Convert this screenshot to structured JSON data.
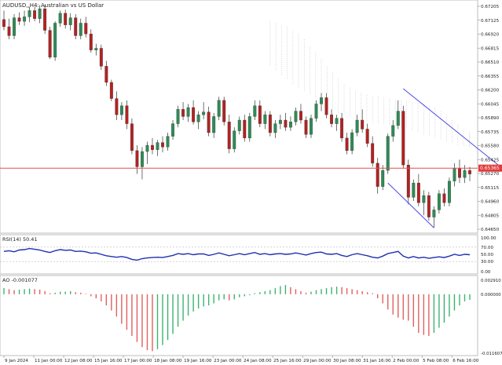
{
  "window": {
    "symbol_title": "AUDUSD,,H4:  Australian vs US Dollar"
  },
  "colors": {
    "bull": "#2e8b57",
    "bear": "#b22222",
    "wick": "#333333",
    "cloud": "#c8c8c8",
    "hline": "#e05050",
    "channel": "#4a4ae0",
    "rsi_line": "#1f2fb0",
    "ao_up": "#3cb371",
    "ao_down": "#e06060",
    "grid": "#ececec"
  },
  "price_axis": {
    "labels": [
      "0.67205",
      "0.67125",
      "0.66920",
      "0.66815",
      "0.66510",
      "0.66355",
      "0.66200",
      "0.66045",
      "0.65890",
      "0.65735",
      "0.65580",
      "0.65425",
      "0.65270",
      "0.65115",
      "0.64960",
      "0.64805",
      "0.64650"
    ],
    "current_price": "0.65365"
  },
  "rsi": {
    "label": "RSI(14) 50.41",
    "axis_labels": [
      "100.00",
      "70.00",
      "50.00",
      "30.00",
      "0.00"
    ],
    "levels": [
      70,
      30
    ]
  },
  "ao": {
    "label": "AO -0.001077",
    "axis_labels": [
      "0.002910",
      "0.000000",
      "-0.011607"
    ]
  },
  "time_axis": {
    "labels": [
      "9 Jan 2024",
      "11 Jan 00:00",
      "12 Jan 08:00",
      "15 Jan 16:00",
      "17 Jan 00:00",
      "18 Jan 08:00",
      "19 Jan 16:00",
      "23 Jan 00:00",
      "24 Jan 08:00",
      "25 Jan 16:00",
      "29 Jan 00:00",
      "30 Jan 08:00",
      "31 Jan 16:00",
      "2 Feb 00:00",
      "5 Feb 08:00",
      "6 Feb 16:00"
    ]
  },
  "chart_data": {
    "type": "candlestick",
    "price_ylim": [
      0.6465,
      0.6722
    ],
    "candles": [
      [
        0.6702,
        0.6712,
        0.669,
        0.6694
      ],
      [
        0.6694,
        0.6703,
        0.668,
        0.6684
      ],
      [
        0.6684,
        0.6708,
        0.668,
        0.6704
      ],
      [
        0.6704,
        0.671,
        0.6696,
        0.67
      ],
      [
        0.67,
        0.6712,
        0.6695,
        0.6705
      ],
      [
        0.6705,
        0.6716,
        0.6699,
        0.6712
      ],
      [
        0.6712,
        0.6716,
        0.67,
        0.6703
      ],
      [
        0.6703,
        0.6718,
        0.6698,
        0.6714
      ],
      [
        0.6714,
        0.6718,
        0.6686,
        0.669
      ],
      [
        0.669,
        0.6694,
        0.6658,
        0.666
      ],
      [
        0.666,
        0.67,
        0.6656,
        0.6698
      ],
      [
        0.6698,
        0.6712,
        0.6694,
        0.6709
      ],
      [
        0.6709,
        0.6713,
        0.6692,
        0.6696
      ],
      [
        0.6696,
        0.6709,
        0.669,
        0.6704
      ],
      [
        0.6704,
        0.6708,
        0.668,
        0.6684
      ],
      [
        0.6684,
        0.6703,
        0.668,
        0.6698
      ],
      [
        0.6698,
        0.6705,
        0.6682,
        0.6686
      ],
      [
        0.6686,
        0.6691,
        0.6665,
        0.6668
      ],
      [
        0.6668,
        0.6675,
        0.6662,
        0.667
      ],
      [
        0.667,
        0.6674,
        0.6646,
        0.665
      ],
      [
        0.665,
        0.6656,
        0.6628,
        0.6632
      ],
      [
        0.6632,
        0.6635,
        0.6611,
        0.6614
      ],
      [
        0.6614,
        0.6622,
        0.659,
        0.6596
      ],
      [
        0.6596,
        0.661,
        0.659,
        0.6606
      ],
      [
        0.6606,
        0.6612,
        0.658,
        0.6586
      ],
      [
        0.6586,
        0.6592,
        0.6552,
        0.6556
      ],
      [
        0.6556,
        0.6562,
        0.653,
        0.6538
      ],
      [
        0.6538,
        0.656,
        0.6524,
        0.6555
      ],
      [
        0.6555,
        0.6566,
        0.6541,
        0.6562
      ],
      [
        0.6562,
        0.657,
        0.6552,
        0.6557
      ],
      [
        0.6557,
        0.6568,
        0.655,
        0.6565
      ],
      [
        0.6565,
        0.6572,
        0.6554,
        0.656
      ],
      [
        0.656,
        0.6576,
        0.6556,
        0.6572
      ],
      [
        0.6572,
        0.659,
        0.6568,
        0.6586
      ],
      [
        0.6586,
        0.6606,
        0.6582,
        0.6602
      ],
      [
        0.6602,
        0.661,
        0.659,
        0.6594
      ],
      [
        0.6594,
        0.6608,
        0.6588,
        0.6604
      ],
      [
        0.6604,
        0.6612,
        0.6585,
        0.6588
      ],
      [
        0.6588,
        0.66,
        0.658,
        0.6596
      ],
      [
        0.6596,
        0.661,
        0.6591,
        0.6599
      ],
      [
        0.6599,
        0.6605,
        0.6572,
        0.6576
      ],
      [
        0.6576,
        0.6598,
        0.657,
        0.6594
      ],
      [
        0.6594,
        0.6616,
        0.659,
        0.6612
      ],
      [
        0.6612,
        0.6616,
        0.6584,
        0.6588
      ],
      [
        0.6588,
        0.6596,
        0.6553,
        0.6558
      ],
      [
        0.6558,
        0.6582,
        0.6554,
        0.6578
      ],
      [
        0.6578,
        0.6594,
        0.6574,
        0.659
      ],
      [
        0.659,
        0.6596,
        0.6566,
        0.657
      ],
      [
        0.657,
        0.6598,
        0.6566,
        0.6594
      ],
      [
        0.6594,
        0.6612,
        0.659,
        0.6606
      ],
      [
        0.6606,
        0.6612,
        0.6582,
        0.6586
      ],
      [
        0.6586,
        0.66,
        0.658,
        0.6596
      ],
      [
        0.6596,
        0.66,
        0.6572,
        0.6576
      ],
      [
        0.6576,
        0.659,
        0.657,
        0.6586
      ],
      [
        0.6586,
        0.6596,
        0.658,
        0.659
      ],
      [
        0.659,
        0.6598,
        0.6578,
        0.6582
      ],
      [
        0.6582,
        0.6594,
        0.6578,
        0.6588
      ],
      [
        0.6588,
        0.6604,
        0.6584,
        0.66
      ],
      [
        0.66,
        0.6608,
        0.6586,
        0.659
      ],
      [
        0.659,
        0.6594,
        0.657,
        0.6574
      ],
      [
        0.6574,
        0.6596,
        0.657,
        0.6592
      ],
      [
        0.6592,
        0.6612,
        0.6588,
        0.6608
      ],
      [
        0.6608,
        0.662,
        0.66,
        0.6615
      ],
      [
        0.6615,
        0.662,
        0.6592,
        0.6596
      ],
      [
        0.6596,
        0.6602,
        0.6582,
        0.6586
      ],
      [
        0.6586,
        0.6596,
        0.6578,
        0.6592
      ],
      [
        0.6592,
        0.6598,
        0.6566,
        0.657
      ],
      [
        0.657,
        0.6576,
        0.6552,
        0.6556
      ],
      [
        0.6556,
        0.658,
        0.6552,
        0.6576
      ],
      [
        0.6576,
        0.6596,
        0.6572,
        0.659
      ],
      [
        0.659,
        0.6602,
        0.6576,
        0.658
      ],
      [
        0.658,
        0.6586,
        0.656,
        0.6564
      ],
      [
        0.6564,
        0.6572,
        0.6538,
        0.6542
      ],
      [
        0.6542,
        0.6548,
        0.6508,
        0.6516
      ],
      [
        0.6516,
        0.654,
        0.6512,
        0.6534
      ],
      [
        0.6534,
        0.6575,
        0.653,
        0.6572
      ],
      [
        0.6572,
        0.659,
        0.6566,
        0.6584
      ],
      [
        0.6584,
        0.6612,
        0.658,
        0.66
      ],
      [
        0.66,
        0.6606,
        0.6536,
        0.654
      ],
      [
        0.654,
        0.6546,
        0.6496,
        0.6504
      ],
      [
        0.6504,
        0.6524,
        0.65,
        0.652
      ],
      [
        0.652,
        0.653,
        0.6494,
        0.6498
      ],
      [
        0.6498,
        0.6512,
        0.6484,
        0.6506
      ],
      [
        0.6506,
        0.651,
        0.6478,
        0.6482
      ],
      [
        0.6482,
        0.6494,
        0.647,
        0.649
      ],
      [
        0.649,
        0.6512,
        0.6486,
        0.6508
      ],
      [
        0.6508,
        0.6514,
        0.6494,
        0.6498
      ],
      [
        0.6498,
        0.6526,
        0.6494,
        0.6522
      ],
      [
        0.6522,
        0.6542,
        0.6516,
        0.6536
      ],
      [
        0.6536,
        0.6546,
        0.652,
        0.6526
      ],
      [
        0.6526,
        0.654,
        0.652,
        0.6534
      ],
      [
        0.6534,
        0.6538,
        0.6522,
        0.653
      ]
    ],
    "cloud_upper": [
      0.67,
      0.6698,
      0.6696,
      0.6694,
      0.669,
      0.6686,
      0.668,
      0.6672,
      0.6665,
      0.6658,
      0.665,
      0.6643,
      0.6636,
      0.663,
      0.6626,
      0.6622,
      0.662,
      0.6618,
      0.6617,
      0.6616,
      0.6615,
      0.6614,
      0.6613,
      0.6612,
      0.6611,
      0.661,
      0.6609,
      0.6608,
      0.6606,
      0.6604,
      0.66,
      0.6596,
      0.659,
      0.6585,
      0.658,
      0.6577,
      0.6574
    ],
    "cloud_lower": [
      0.665,
      0.6645,
      0.664,
      0.6636,
      0.663,
      0.6626,
      0.6622,
      0.6618,
      0.6614,
      0.661,
      0.6606,
      0.6602,
      0.6598,
      0.6596,
      0.6594,
      0.6592,
      0.659,
      0.6588,
      0.6587,
      0.6586,
      0.6585,
      0.6584,
      0.6583,
      0.6582,
      0.658,
      0.6578,
      0.6576,
      0.6574,
      0.6572,
      0.657,
      0.6568,
      0.6566,
      0.6564,
      0.6562,
      0.6561,
      0.656,
      0.656
    ],
    "hline_price": 0.65365,
    "channel_upper": [
      [
        0.6625,
        78
      ],
      [
        0.6538,
        97
      ]
    ],
    "channel_lower": [
      [
        0.652,
        75
      ],
      [
        0.647,
        84
      ]
    ],
    "rsi_values": [
      58,
      60,
      57,
      62,
      63,
      66,
      64,
      62,
      58,
      55,
      60,
      63,
      61,
      62,
      58,
      59,
      57,
      53,
      54,
      50,
      46,
      44,
      42,
      44,
      41,
      36,
      34,
      38,
      40,
      41,
      42,
      41,
      44,
      47,
      52,
      50,
      52,
      49,
      51,
      51,
      47,
      50,
      54,
      50,
      46,
      49,
      52,
      49,
      52,
      55,
      50,
      52,
      49,
      51,
      52,
      50,
      51,
      54,
      51,
      48,
      52,
      55,
      56,
      51,
      50,
      52,
      47,
      44,
      49,
      52,
      49,
      46,
      42,
      40,
      45,
      52,
      55,
      58,
      45,
      40,
      44,
      40,
      42,
      39,
      41,
      43,
      41,
      45,
      50,
      47,
      50,
      49
    ],
    "ao_values": [
      0.0012,
      0.001,
      0.0008,
      0.0009,
      0.001,
      0.0011,
      0.001,
      0.0009,
      0.0006,
      0.0002,
      0.0003,
      0.0005,
      0.0005,
      0.0006,
      0.0004,
      0.0003,
      0.0001,
      -0.0004,
      -0.0008,
      -0.0014,
      -0.0022,
      -0.0032,
      -0.0044,
      -0.0058,
      -0.007,
      -0.0082,
      -0.0094,
      -0.0104,
      -0.011,
      -0.0112,
      -0.0108,
      -0.01,
      -0.009,
      -0.0078,
      -0.0064,
      -0.0052,
      -0.0042,
      -0.0034,
      -0.0028,
      -0.0024,
      -0.0022,
      -0.0018,
      -0.0012,
      -0.001,
      -0.0012,
      -0.001,
      -0.0006,
      -0.0004,
      -0.0002,
      0.0002,
      0.0004,
      0.0006,
      0.0008,
      0.0012,
      0.0016,
      0.0018,
      0.0014,
      0.001,
      0.0006,
      0.0003,
      0.0005,
      0.0008,
      0.001,
      0.0012,
      0.0014,
      0.0015,
      0.0014,
      0.0012,
      0.001,
      0.0008,
      0.0006,
      0.0004,
      0.0002,
      -0.0008,
      -0.0018,
      -0.003,
      -0.004,
      -0.0046,
      -0.005,
      -0.0052,
      -0.0064,
      -0.0076,
      -0.008,
      -0.0082,
      -0.0076,
      -0.0066,
      -0.0056,
      -0.0044,
      -0.0032,
      -0.0022,
      -0.0014,
      -0.0011
    ],
    "ao_ylim": [
      -0.011607,
      0.00291
    ]
  }
}
